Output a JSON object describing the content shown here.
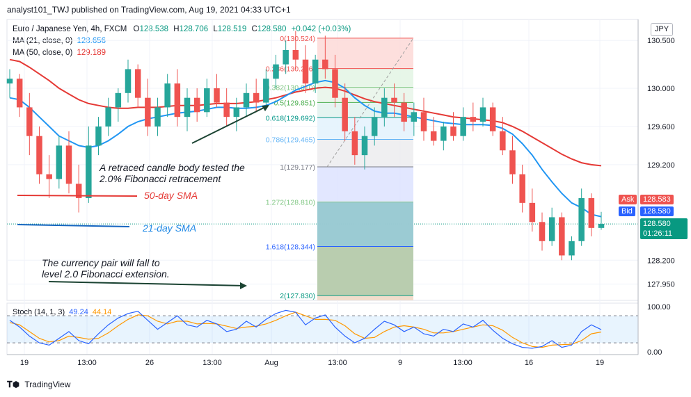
{
  "header": {
    "published": "analyst101_TWJ published on TradingView.com, Aug 19, 2021 04:33 UTC+1"
  },
  "legend": {
    "symbol": "Euro / Japanese Yen, 4h, FXCM",
    "ohlc": {
      "o_label": "O",
      "o": "128.538",
      "h_label": "H",
      "h": "128.706",
      "l_label": "L",
      "l": "128.519",
      "c_label": "C",
      "c": "128.580",
      "change": "+0.042 (+0.03%)"
    },
    "ma21": {
      "label": "MA (21, close, 0)",
      "value": "128.656",
      "color": "#2196f3"
    },
    "ma50": {
      "label": "MA (50, close, 0)",
      "value": "129.189",
      "color": "#e53935"
    }
  },
  "currency_button": "JPY",
  "price_tags": {
    "ask_label": "Ask",
    "ask": "128.583",
    "bid_label": "Bid",
    "bid": "128.580",
    "last": "128.580",
    "countdown": "01:26:11"
  },
  "annotations": {
    "retrace_line1": "A retraced candle body tested the",
    "retrace_line2": "2.0% Fibonacci retracement",
    "sma50": "50-day SMA",
    "sma21": "21-day SMA",
    "fall_line1": "The currency pair will fall to",
    "fall_line2": "level 2.0 Fibonacci extension."
  },
  "fib_levels": [
    {
      "label": "0(130.524)",
      "ratio": "0",
      "price": 130.524,
      "color": "#ef5350"
    },
    {
      "label": "0.236(130.206)",
      "ratio": "0.236",
      "price": 130.206,
      "color": "#ef5350"
    },
    {
      "label": "0.382(130.010)",
      "ratio": "0.382",
      "price": 130.01,
      "color": "#81c784"
    },
    {
      "label": "0.5(129.851)",
      "ratio": "0.5",
      "price": 129.851,
      "color": "#4caf50"
    },
    {
      "label": "0.618(129.692)",
      "ratio": "0.618",
      "price": 129.692,
      "color": "#009688"
    },
    {
      "label": "0.786(129.465)",
      "ratio": "0.786",
      "price": 129.465,
      "color": "#64b5f6"
    },
    {
      "label": "1(129.177)",
      "ratio": "1",
      "price": 129.177,
      "color": "#787b86"
    },
    {
      "label": "1.272(128.810)",
      "ratio": "1.272",
      "price": 128.81,
      "color": "#81c784"
    },
    {
      "label": "1.618(128.344)",
      "ratio": "1.618",
      "price": 128.344,
      "color": "#2962ff"
    },
    {
      "label": "2(127.830)",
      "ratio": "2",
      "price": 127.83,
      "color": "#089981"
    }
  ],
  "stoch": {
    "label": "Stoch (14, 1, 3)",
    "k": "49.24",
    "d": "44.14",
    "k_color": "#2962ff",
    "d_color": "#ff9800"
  },
  "footer": {
    "brand": "TradingView"
  },
  "chart_data": [
    {
      "type": "candlestick",
      "title": "Euro / Japanese Yen, 4h, FXCM",
      "x_tick_labels": [
        "19",
        "13:00",
        "26",
        "13:00",
        "Aug",
        "13:00",
        "9",
        "13:00",
        "16",
        "19"
      ],
      "y_tick_labels": [
        "130.500",
        "130.000",
        "129.600",
        "129.200",
        "128.200",
        "127.950"
      ],
      "ylim": [
        127.78,
        130.72
      ],
      "grid": true,
      "last_close": 128.58,
      "up_color": "#26a69a",
      "down_color": "#ef5350",
      "ohlc": [
        [
          130.05,
          130.2,
          129.9,
          130.1
        ],
        [
          130.1,
          130.15,
          129.7,
          129.8
        ],
        [
          129.8,
          129.95,
          129.3,
          129.5
        ],
        [
          129.5,
          129.6,
          129.0,
          129.1
        ],
        [
          129.1,
          129.3,
          128.85,
          129.05
        ],
        [
          129.05,
          129.5,
          128.95,
          129.4
        ],
        [
          129.4,
          129.55,
          128.9,
          129.0
        ],
        [
          129.0,
          129.2,
          128.7,
          128.85
        ],
        [
          128.85,
          129.6,
          128.8,
          129.4
        ],
        [
          129.4,
          129.7,
          129.3,
          129.6
        ],
        [
          129.6,
          129.9,
          129.5,
          129.8
        ],
        [
          129.8,
          130.0,
          129.65,
          129.95
        ],
        [
          129.95,
          130.3,
          129.85,
          130.2
        ],
        [
          130.2,
          130.25,
          129.8,
          129.9
        ],
        [
          129.9,
          130.1,
          129.5,
          129.6
        ],
        [
          129.6,
          129.9,
          129.5,
          129.8
        ],
        [
          129.8,
          130.15,
          129.7,
          130.05
        ],
        [
          130.05,
          130.2,
          129.6,
          129.7
        ],
        [
          129.7,
          130.0,
          129.55,
          129.9
        ],
        [
          129.9,
          130.0,
          129.65,
          129.75
        ],
        [
          129.75,
          130.1,
          129.7,
          130.0
        ],
        [
          130.0,
          130.15,
          129.8,
          129.85
        ],
        [
          129.85,
          130.0,
          129.6,
          129.7
        ],
        [
          129.7,
          129.9,
          129.55,
          129.8
        ],
        [
          129.8,
          130.05,
          129.7,
          129.95
        ],
        [
          129.95,
          130.1,
          129.75,
          129.85
        ],
        [
          129.85,
          130.2,
          129.8,
          130.1
        ],
        [
          130.1,
          130.35,
          130.0,
          130.25
        ],
        [
          130.25,
          130.5,
          130.15,
          130.4
        ],
        [
          130.4,
          130.6,
          130.2,
          130.3
        ],
        [
          130.3,
          130.45,
          129.95,
          130.05
        ],
        [
          130.05,
          130.35,
          129.95,
          130.3
        ],
        [
          130.3,
          130.55,
          130.1,
          130.2
        ],
        [
          130.2,
          130.35,
          129.8,
          129.9
        ],
        [
          129.9,
          130.05,
          129.45,
          129.55
        ],
        [
          129.55,
          129.7,
          129.2,
          129.3
        ],
        [
          129.3,
          129.6,
          129.15,
          129.5
        ],
        [
          129.5,
          129.8,
          129.4,
          129.7
        ],
        [
          129.7,
          130.0,
          129.6,
          129.9
        ],
        [
          129.9,
          130.05,
          129.7,
          129.85
        ],
        [
          129.85,
          129.95,
          129.55,
          129.65
        ],
        [
          129.65,
          129.85,
          129.5,
          129.75
        ],
        [
          129.75,
          129.9,
          129.45,
          129.55
        ],
        [
          129.55,
          129.7,
          129.4,
          129.45
        ],
        [
          129.45,
          129.65,
          129.35,
          129.6
        ],
        [
          129.6,
          129.75,
          129.45,
          129.5
        ],
        [
          129.5,
          129.8,
          129.45,
          129.7
        ],
        [
          129.7,
          129.85,
          129.55,
          129.65
        ],
        [
          129.65,
          129.9,
          129.6,
          129.8
        ],
        [
          129.8,
          129.85,
          129.5,
          129.55
        ],
        [
          129.55,
          129.7,
          129.3,
          129.35
        ],
        [
          129.35,
          129.5,
          129.0,
          129.1
        ],
        [
          129.1,
          129.2,
          128.7,
          128.8
        ],
        [
          128.8,
          128.95,
          128.5,
          128.6
        ],
        [
          128.6,
          128.7,
          128.3,
          128.4
        ],
        [
          128.4,
          128.75,
          128.35,
          128.65
        ],
        [
          128.65,
          128.7,
          128.2,
          128.25
        ],
        [
          128.25,
          128.45,
          128.2,
          128.4
        ],
        [
          128.4,
          128.95,
          128.35,
          128.85
        ],
        [
          128.85,
          128.9,
          128.45,
          128.538
        ],
        [
          128.538,
          128.706,
          128.519,
          128.58
        ]
      ],
      "ma21": [
        129.9,
        129.88,
        129.8,
        129.7,
        129.6,
        129.5,
        129.45,
        129.4,
        129.38,
        129.4,
        129.45,
        129.52,
        129.6,
        129.65,
        129.68,
        129.7,
        129.72,
        129.74,
        129.75,
        129.76,
        129.78,
        129.8,
        129.8,
        129.79,
        129.79,
        129.8,
        129.82,
        129.86,
        129.92,
        129.98,
        130.02,
        130.06,
        130.08,
        130.06,
        130.0,
        129.9,
        129.82,
        129.76,
        129.74,
        129.74,
        129.72,
        129.7,
        129.68,
        129.66,
        129.64,
        129.63,
        129.62,
        129.62,
        129.62,
        129.61,
        129.58,
        129.52,
        129.42,
        129.3,
        129.15,
        129.02,
        128.9,
        128.8,
        128.75,
        128.68,
        128.656
      ],
      "ma50": [
        130.3,
        130.28,
        130.22,
        130.15,
        130.08,
        130.0,
        129.94,
        129.88,
        129.84,
        129.82,
        129.8,
        129.79,
        129.79,
        129.8,
        129.8,
        129.8,
        129.81,
        129.82,
        129.82,
        129.82,
        129.83,
        129.84,
        129.84,
        129.84,
        129.85,
        129.86,
        129.88,
        129.9,
        129.93,
        129.96,
        129.98,
        130.0,
        130.01,
        130.0,
        129.97,
        129.93,
        129.89,
        129.86,
        129.84,
        129.82,
        129.8,
        129.78,
        129.76,
        129.74,
        129.72,
        129.7,
        129.69,
        129.68,
        129.67,
        129.66,
        129.64,
        129.6,
        129.55,
        129.49,
        129.43,
        129.37,
        129.31,
        129.26,
        129.22,
        129.2,
        129.189
      ]
    },
    {
      "type": "line",
      "title": "Stoch (14, 1, 3)",
      "y_tick_labels": [
        "100.00",
        "0.00"
      ],
      "ylim": [
        -6,
        108
      ],
      "bands": [
        80,
        20
      ],
      "series": [
        {
          "name": "%K",
          "color": "#2962ff",
          "values": [
            70,
            55,
            35,
            20,
            15,
            30,
            45,
            25,
            18,
            40,
            60,
            75,
            85,
            90,
            70,
            50,
            65,
            80,
            60,
            55,
            70,
            62,
            45,
            50,
            68,
            55,
            72,
            85,
            92,
            88,
            60,
            75,
            82,
            55,
            35,
            20,
            30,
            50,
            68,
            60,
            45,
            55,
            40,
            35,
            50,
            45,
            62,
            55,
            70,
            48,
            30,
            18,
            10,
            8,
            12,
            25,
            10,
            15,
            45,
            60,
            49.24
          ]
        },
        {
          "name": "%D",
          "color": "#ff9800",
          "values": [
            65,
            60,
            45,
            30,
            22,
            25,
            35,
            32,
            28,
            30,
            42,
            58,
            72,
            82,
            80,
            68,
            62,
            68,
            68,
            62,
            63,
            62,
            57,
            52,
            55,
            57,
            62,
            70,
            80,
            88,
            80,
            72,
            72,
            70,
            58,
            40,
            30,
            32,
            45,
            55,
            58,
            55,
            50,
            42,
            42,
            45,
            50,
            55,
            60,
            58,
            48,
            32,
            20,
            12,
            10,
            15,
            16,
            17,
            25,
            40,
            44.14
          ]
        }
      ]
    }
  ]
}
